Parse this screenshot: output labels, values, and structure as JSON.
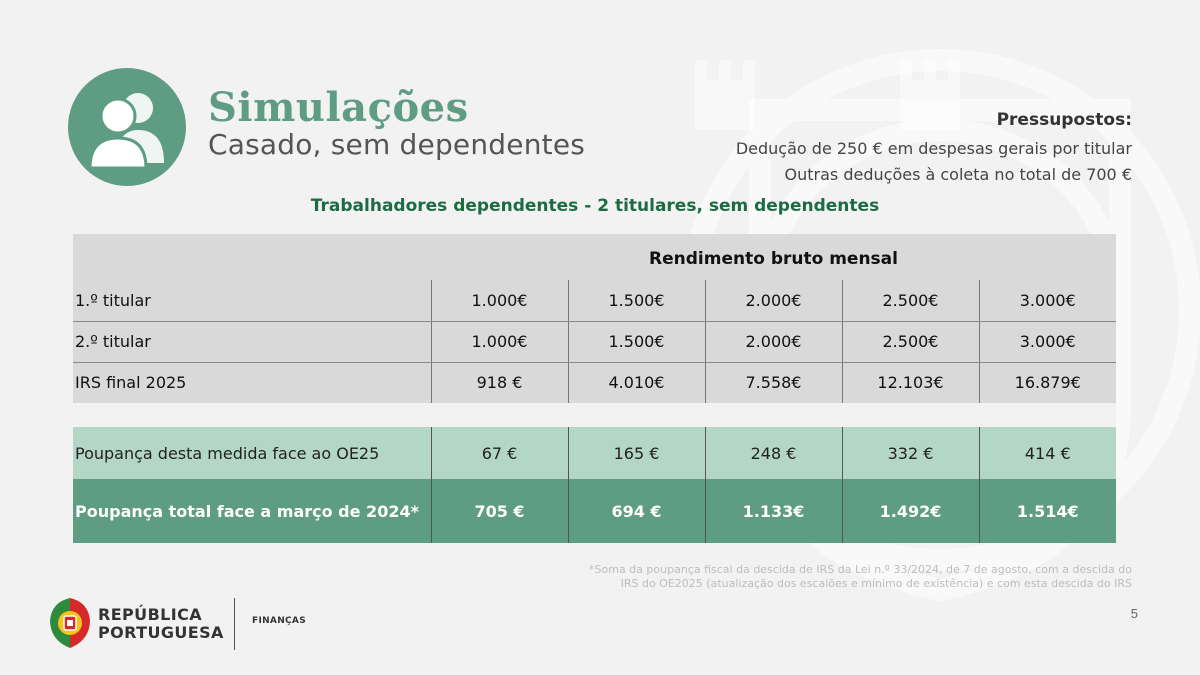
{
  "header": {
    "title": "Simulações",
    "subtitle": "Casado, sem dependentes"
  },
  "assumptions": {
    "heading": "Pressupostos:",
    "lines": [
      "Dedução de 250 € em despesas gerais por titular",
      "Outras deduções à coleta no total de 700 €"
    ]
  },
  "table": {
    "title": "Trabalhadores dependentes - 2 titulares, sem dependentes",
    "column_group_header": "Rendimento bruto mensal",
    "rows": [
      {
        "label": "1.º titular",
        "values": [
          "1.000€",
          "1.500€",
          "2.000€",
          "2.500€",
          "3.000€"
        ]
      },
      {
        "label": "2.º titular",
        "values": [
          "1.000€",
          "1.500€",
          "2.000€",
          "2.500€",
          "3.000€"
        ]
      },
      {
        "label": "IRS final 2025",
        "values": [
          "918 €",
          "4.010€",
          "7.558€",
          "12.103€",
          "16.879€"
        ]
      }
    ],
    "savings_rows": [
      {
        "label": "Poupança desta medida face ao OE25",
        "values": [
          "67 €",
          "165 €",
          "248 €",
          "332 €",
          "414 €"
        ]
      },
      {
        "label": "Poupança total face a março de 2024*",
        "values": [
          "705 €",
          "694 €",
          "1.133€",
          "1.492€",
          "1.514€"
        ]
      }
    ]
  },
  "footnote": {
    "line1": "*Soma da poupança fiscal da descida de IRS da Lei n.º 33/2024, de 7 de agosto, com a descida do",
    "line2": "IRS do OE2025 (atualização dos escalões e mínimo de existência) e com esta descida do IRS"
  },
  "page_number": "5",
  "footer": {
    "republic_line1": "REPÚBLICA",
    "republic_line2": "PORTUGUESA",
    "ministry": "FINANÇAS"
  },
  "colors": {
    "accent_green": "#5e9c84",
    "light_green": "#b3d6c6",
    "title_green": "#1d6b43",
    "table_grey": "#d9d9d9"
  },
  "icons": {
    "hero": "people-icon",
    "logo": "coat-of-arms-icon"
  }
}
